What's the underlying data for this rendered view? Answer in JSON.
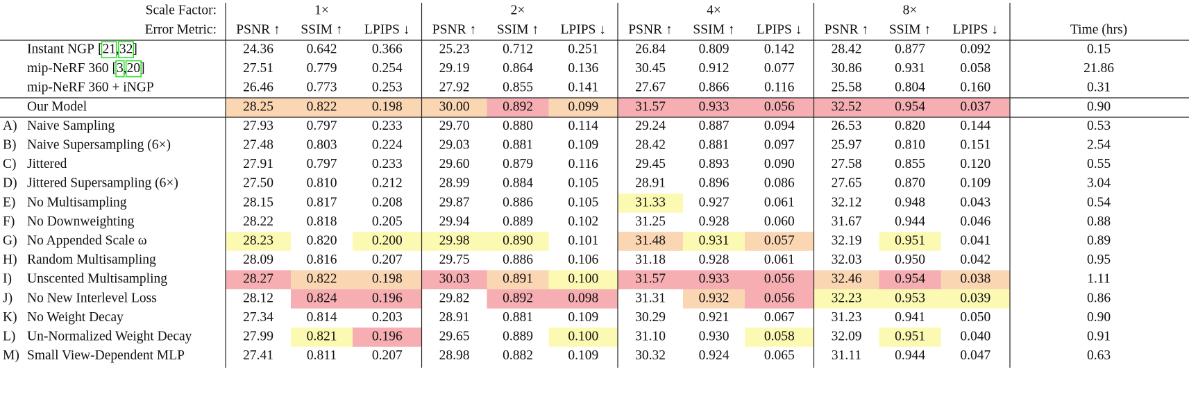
{
  "header": {
    "scale_label": "Scale Factor:",
    "scale_factors": [
      "1×",
      "2×",
      "4×",
      "8×"
    ],
    "metric_label": "Error Metric:",
    "columns": [
      "PSNR ↑",
      "SSIM ↑",
      "LPIPS ↓",
      "PSNR ↑",
      "SSIM ↑",
      "LPIPS ↓",
      "PSNR ↑",
      "SSIM ↑",
      "LPIPS ↓",
      "PSNR ↑",
      "SSIM ↑",
      "LPIPS ↓",
      "Time (hrs)"
    ]
  },
  "table": {
    "rows": [
      {
        "name": "Instant NGP",
        "cites": [
          "21",
          "32"
        ],
        "values": [
          "24.36",
          "0.642",
          "0.366",
          "25.23",
          "0.712",
          "0.251",
          "26.84",
          "0.809",
          "0.142",
          "28.42",
          "0.877",
          "0.092",
          "0.15"
        ]
      },
      {
        "name": "mip-NeRF 360",
        "cites": [
          "3",
          "20"
        ],
        "values": [
          "27.51",
          "0.779",
          "0.254",
          "29.19",
          "0.864",
          "0.136",
          "30.45",
          "0.912",
          "0.077",
          "30.86",
          "0.931",
          "0.058",
          "21.86"
        ]
      },
      {
        "name": "mip-NeRF 360 + iNGP",
        "values": [
          "26.46",
          "0.773",
          "0.253",
          "27.92",
          "0.855",
          "0.141",
          "27.67",
          "0.866",
          "0.116",
          "25.58",
          "0.804",
          "0.160",
          "0.31"
        ]
      },
      {
        "name": "Our Model",
        "values": [
          "28.25",
          "0.822",
          "0.198",
          "30.00",
          "0.892",
          "0.099",
          "31.57",
          "0.933",
          "0.056",
          "32.52",
          "0.954",
          "0.037",
          "0.90"
        ]
      },
      {
        "prefix": "A)",
        "name": "Naive Sampling",
        "values": [
          "27.93",
          "0.797",
          "0.233",
          "29.70",
          "0.880",
          "0.114",
          "29.24",
          "0.887",
          "0.094",
          "26.53",
          "0.820",
          "0.144",
          "0.53"
        ]
      },
      {
        "prefix": "B)",
        "name": "Naive Supersampling (6×)",
        "values": [
          "27.48",
          "0.803",
          "0.224",
          "29.03",
          "0.881",
          "0.109",
          "28.42",
          "0.881",
          "0.097",
          "25.97",
          "0.810",
          "0.151",
          "2.54"
        ]
      },
      {
        "prefix": "C)",
        "name": "Jittered",
        "values": [
          "27.91",
          "0.797",
          "0.233",
          "29.60",
          "0.879",
          "0.116",
          "29.45",
          "0.893",
          "0.090",
          "27.58",
          "0.855",
          "0.120",
          "0.55"
        ]
      },
      {
        "prefix": "D)",
        "name": "Jittered Supersampling (6×)",
        "values": [
          "27.50",
          "0.810",
          "0.212",
          "28.99",
          "0.884",
          "0.105",
          "28.91",
          "0.896",
          "0.086",
          "27.65",
          "0.870",
          "0.109",
          "3.04"
        ]
      },
      {
        "prefix": "E)",
        "name": "No Multisampling",
        "values": [
          "28.15",
          "0.817",
          "0.208",
          "29.87",
          "0.886",
          "0.105",
          "31.33",
          "0.927",
          "0.061",
          "32.12",
          "0.948",
          "0.043",
          "0.54"
        ]
      },
      {
        "prefix": "F)",
        "name": "No Downweighting",
        "values": [
          "28.22",
          "0.818",
          "0.205",
          "29.94",
          "0.889",
          "0.102",
          "31.25",
          "0.928",
          "0.060",
          "31.67",
          "0.944",
          "0.046",
          "0.88"
        ]
      },
      {
        "prefix": "G)",
        "name": "No Appended Scale ω",
        "values": [
          "28.23",
          "0.820",
          "0.200",
          "29.98",
          "0.890",
          "0.101",
          "31.48",
          "0.931",
          "0.057",
          "32.19",
          "0.951",
          "0.041",
          "0.89"
        ]
      },
      {
        "prefix": "H)",
        "name": "Random Multisampling",
        "values": [
          "28.09",
          "0.816",
          "0.207",
          "29.75",
          "0.886",
          "0.106",
          "31.18",
          "0.928",
          "0.061",
          "32.03",
          "0.950",
          "0.042",
          "0.95"
        ]
      },
      {
        "prefix": "I)",
        "name": "Unscented Multisampling",
        "values": [
          "28.27",
          "0.822",
          "0.198",
          "30.03",
          "0.891",
          "0.100",
          "31.57",
          "0.933",
          "0.056",
          "32.46",
          "0.954",
          "0.038",
          "1.11"
        ]
      },
      {
        "prefix": "J)",
        "name": "No New Interlevel Loss",
        "values": [
          "28.12",
          "0.824",
          "0.196",
          "29.82",
          "0.892",
          "0.098",
          "31.31",
          "0.932",
          "0.056",
          "32.23",
          "0.953",
          "0.039",
          "0.86"
        ]
      },
      {
        "prefix": "K)",
        "name": "No Weight Decay",
        "values": [
          "27.34",
          "0.814",
          "0.203",
          "28.91",
          "0.881",
          "0.109",
          "30.29",
          "0.921",
          "0.067",
          "31.23",
          "0.941",
          "0.050",
          "0.90"
        ]
      },
      {
        "prefix": "L)",
        "name": "Un-Normalized Weight Decay",
        "values": [
          "27.99",
          "0.821",
          "0.196",
          "29.65",
          "0.889",
          "0.100",
          "31.10",
          "0.930",
          "0.058",
          "32.09",
          "0.951",
          "0.040",
          "0.91"
        ]
      },
      {
        "prefix": "M)",
        "name": "Small View-Dependent MLP",
        "values": [
          "27.41",
          "0.811",
          "0.207",
          "28.98",
          "0.882",
          "0.109",
          "30.32",
          "0.924",
          "0.065",
          "31.11",
          "0.944",
          "0.047",
          "0.63"
        ]
      }
    ]
  }
}
